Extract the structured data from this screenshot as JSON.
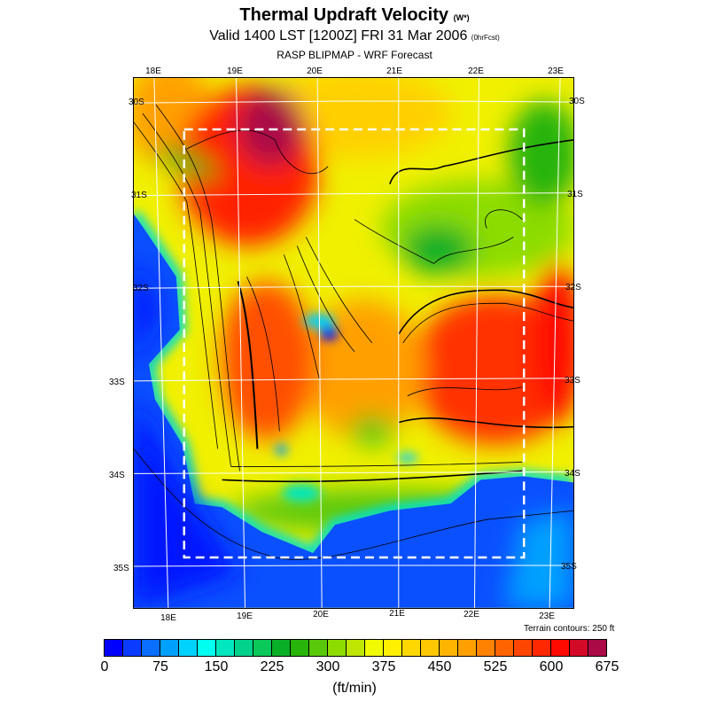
{
  "header": {
    "title": "Thermal Updraft Velocity",
    "title_units": "(W*)",
    "subtitle": "Valid 1400 LST [1200Z] FRI 31 Mar 2006",
    "forecast_tag": "(0hrFcst)",
    "source": "RASP BLIPMAP - WRF Forecast"
  },
  "map": {
    "lon_labels_top": [
      "18E",
      "19E",
      "20E",
      "21E",
      "22E",
      "23E"
    ],
    "lon_labels_bottom": [
      "18E",
      "19E",
      "20E",
      "21E",
      "22E",
      "23E"
    ],
    "lat_labels_left": [
      "30S",
      "31S",
      "32S",
      "33S",
      "34S",
      "35S"
    ],
    "lat_labels_right": [
      "30S",
      "31S",
      "32S",
      "33S",
      "34S",
      "35S"
    ],
    "terrain_note": "Terrain contours: 250 ft"
  },
  "legend": {
    "units": "(ft/min)",
    "ticks": [
      "0",
      "75",
      "150",
      "225",
      "300",
      "375",
      "450",
      "525",
      "600",
      "675"
    ],
    "colors": [
      "#0000ff",
      "#0a3cff",
      "#0a6eff",
      "#00a0ff",
      "#00d2ff",
      "#00fff0",
      "#00e6be",
      "#00d28c",
      "#0ac85a",
      "#0aaf28",
      "#28b40a",
      "#5ac80a",
      "#8cdc00",
      "#bee600",
      "#f0fa00",
      "#fff000",
      "#ffd700",
      "#ffc800",
      "#ffb400",
      "#ffa000",
      "#ff8200",
      "#ff6400",
      "#ff4600",
      "#ff2800",
      "#ff0a00",
      "#d20a28",
      "#aa0a46"
    ]
  }
}
